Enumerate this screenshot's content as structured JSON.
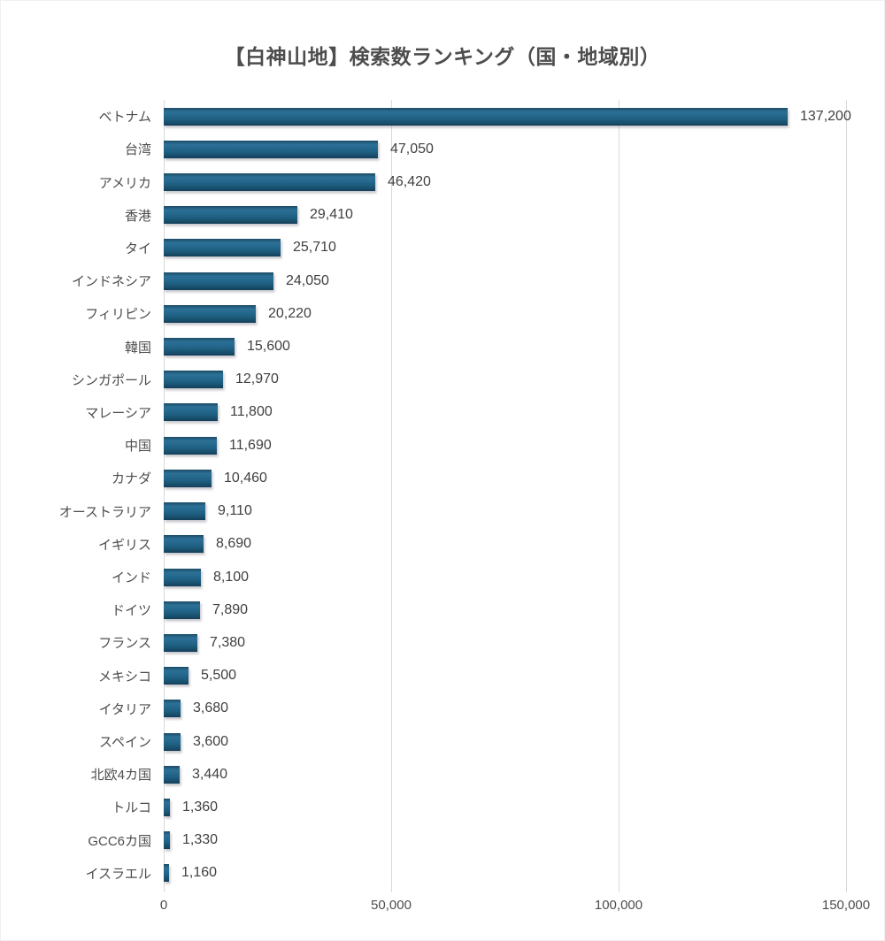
{
  "title": "【白神山地】検索数ランキング（国・地域別）",
  "chart_data": {
    "type": "bar",
    "orientation": "horizontal",
    "title": "【白神山地】検索数ランキング（国・地域別）",
    "categories": [
      "ベトナム",
      "台湾",
      "アメリカ",
      "香港",
      "タイ",
      "インドネシア",
      "フィリピン",
      "韓国",
      "シンガポール",
      "マレーシア",
      "中国",
      "カナダ",
      "オーストラリア",
      "イギリス",
      "インド",
      "ドイツ",
      "フランス",
      "メキシコ",
      "イタリア",
      "スペイン",
      "北欧4カ国",
      "トルコ",
      "GCC6カ国",
      "イスラエル"
    ],
    "values": [
      137200,
      47050,
      46420,
      29410,
      25710,
      24050,
      20220,
      15600,
      12970,
      11800,
      11690,
      10460,
      9110,
      8690,
      8100,
      7890,
      7380,
      5500,
      3680,
      3600,
      3440,
      1360,
      1330,
      1160
    ],
    "value_labels": [
      "137,200",
      "47,050",
      "46,420",
      "29,410",
      "25,710",
      "24,050",
      "20,220",
      "15,600",
      "12,970",
      "11,800",
      "11,690",
      "10,460",
      "9,110",
      "8,690",
      "8,100",
      "7,890",
      "7,380",
      "5,500",
      "3,680",
      "3,600",
      "3,440",
      "1,360",
      "1,330",
      "1,160"
    ],
    "xlim": [
      0,
      150000
    ],
    "x_tick_values": [
      0,
      50000,
      100000,
      150000
    ],
    "x_tick_labels": [
      "0",
      "50,000",
      "100,000",
      "150,000"
    ],
    "grid": true,
    "legend": false,
    "ylabel": "",
    "xlabel": ""
  },
  "colors": {
    "bar_light": "#2d7096",
    "bar_mid": "#1f6082",
    "bar_dark": "#143e57",
    "gridline": "#d9d9d9",
    "title_text": "#4d4d4d",
    "category_text": "#4d4d4d",
    "value_text": "#404040",
    "axis_text": "#4d4d4d",
    "background": "#ffffff"
  }
}
